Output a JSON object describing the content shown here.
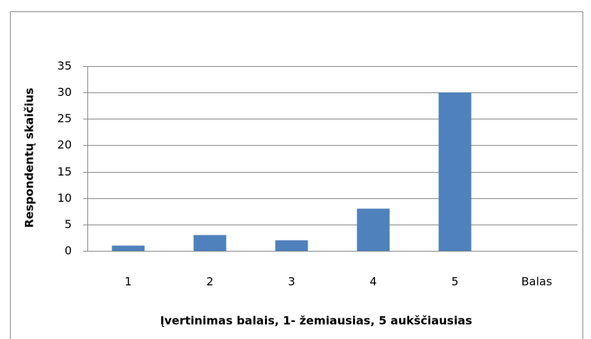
{
  "chart_data": {
    "type": "bar",
    "categories": [
      "1",
      "2",
      "3",
      "4",
      "5",
      "Balas"
    ],
    "values": [
      1,
      3,
      2,
      8,
      30,
      null
    ],
    "color": "#4f81bd",
    "ylim": [
      0,
      35
    ],
    "yticks": [
      0,
      5,
      10,
      15,
      20,
      25,
      30,
      35
    ],
    "grid": true,
    "y_label": "Respondentų skaičius",
    "x_label": "Įvertinimas balais, 1- žemiausias, 5 aukščiausias"
  }
}
